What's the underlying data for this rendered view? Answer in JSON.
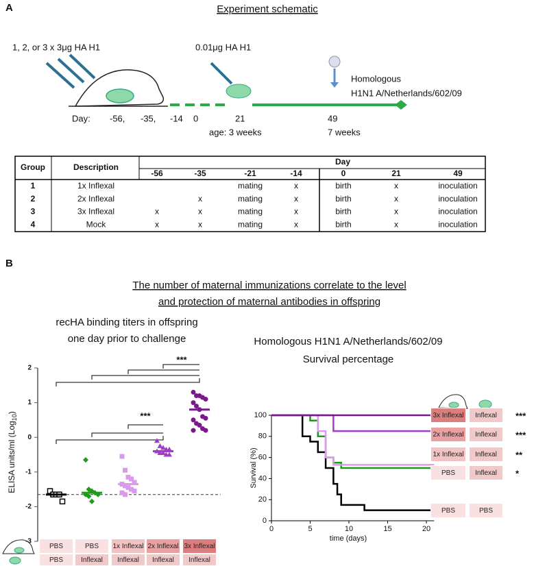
{
  "panel_a": {
    "label": "A",
    "title": "Experiment schematic",
    "dose_text": "1, 2, or 3 x 3μg HA H1",
    "boost_text": "0.01μg HA H1",
    "challenge": [
      "Homologous",
      "H1N1 A/Netherlands/602/09"
    ],
    "day_label": "Day:",
    "days": [
      "-56,",
      "-35,",
      "-14",
      "0",
      "21",
      "49"
    ],
    "ages": [
      "age: 3 weeks",
      "7 weeks"
    ],
    "table": {
      "headers": [
        "Group",
        "Description"
      ],
      "day_header": "Day",
      "day_columns": [
        "-56",
        "-35",
        "-21",
        "-14",
        "0",
        "21",
        "49"
      ],
      "rows": [
        [
          "1",
          "1x Inflexal",
          null,
          null,
          "mating",
          "x",
          "birth",
          "x",
          "inoculation"
        ],
        [
          "2",
          "2x Inflexal",
          null,
          "x",
          "mating",
          "x",
          "birth",
          "x",
          "inoculation"
        ],
        [
          "3",
          "3x Inflexal",
          "x",
          "x",
          "mating",
          "x",
          "birth",
          "x",
          "inoculation"
        ],
        [
          "4",
          "Mock",
          "x",
          "x",
          "mating",
          "x",
          "birth",
          "x",
          "inoculation"
        ]
      ]
    }
  },
  "panel_b": {
    "label": "B",
    "title": [
      "The number of maternal immunizations correlate to the level",
      "and protection of maternal antibodies in offspring"
    ],
    "titers": {
      "type": "dot",
      "title": [
        "recHA binding titers in offspring",
        "one day prior to  challenge"
      ],
      "y_label": [
        "ELISA units/ml (Log",
        "10",
        ")"
      ],
      "ylim": [
        -3,
        2
      ],
      "yticks": [
        -3,
        -2,
        -1,
        0,
        1,
        2
      ],
      "detection_limit": -1.65,
      "significance": [
        "***",
        "***"
      ],
      "groups": [
        {
          "maternal": "PBS",
          "offspring": "PBS",
          "color": "#000000",
          "shape": "open-square",
          "box_color": "#f9e1e1",
          "mean": -1.65,
          "points": [
            -1.55,
            -1.65,
            -1.65,
            -1.65,
            -1.85
          ]
        },
        {
          "maternal": "PBS",
          "offspring": "Inflexal",
          "color": "#1f9a1f",
          "shape": "diamond",
          "box_color": "#f9e1e1",
          "mean": -1.6,
          "points": [
            -0.65,
            -1.5,
            -1.55,
            -1.6,
            -1.65,
            -1.65,
            -1.7,
            -1.85
          ]
        },
        {
          "maternal": "1x Inflexal",
          "offspring": "Inflexal",
          "color": "#dd99ee",
          "shape": "square",
          "box_color": "#f1c3c3",
          "mean": -1.35,
          "points": [
            -0.55,
            -0.95,
            -1.15,
            -1.2,
            -1.3,
            -1.35,
            -1.4,
            -1.45,
            -1.5,
            -1.55,
            -1.6,
            -1.65
          ]
        },
        {
          "maternal": "2x Inflexal",
          "offspring": "Inflexal",
          "color": "#a23bc8",
          "shape": "triangle",
          "box_color": "#e8a0a0",
          "mean": -0.4,
          "points": [
            -0.1,
            -0.25,
            -0.3,
            -0.35,
            -0.35,
            -0.4,
            -0.45,
            -0.45,
            -0.5,
            -0.5
          ]
        },
        {
          "maternal": "3x Inflexal",
          "offspring": "Inflexal",
          "color": "#7a1a8a",
          "shape": "circle",
          "box_color": "#dc7e7e",
          "mean": 0.8,
          "points": [
            1.3,
            1.2,
            1.2,
            1.15,
            1.1,
            1.0,
            0.9,
            0.8,
            0.6,
            0.55,
            0.5,
            0.4,
            0.35,
            0.25,
            0.2,
            0.2
          ]
        }
      ]
    },
    "survival": {
      "type": "step",
      "title": [
        "Homologous H1N1 A/Netherlands/602/09",
        "Survival percentage"
      ],
      "y_label": "Survival (%)",
      "x_label": "time (days)",
      "xlim": [
        0,
        21
      ],
      "xticks": [
        0,
        5,
        10,
        15,
        20
      ],
      "ylim": [
        0,
        100
      ],
      "yticks": [
        0,
        20,
        40,
        60,
        80,
        100
      ],
      "series": [
        {
          "maternal": "3x Inflexal",
          "offspring": "Inflexal",
          "significance": "***",
          "color": "#7a1a8a",
          "box_color": "#dc7e7e",
          "x": [
            0,
            21
          ],
          "y": [
            100,
            100
          ]
        },
        {
          "maternal": "2x Inflexal",
          "offspring": "Inflexal",
          "significance": "***",
          "color": "#a23bc8",
          "box_color": "#e8a0a0",
          "x": [
            0,
            8,
            21
          ],
          "y": [
            100,
            85,
            85
          ]
        },
        {
          "maternal": "1x Inflexal",
          "offspring": "Inflexal",
          "significance": "**",
          "color": "#dd99ee",
          "box_color": "#f1c3c3",
          "x": [
            0,
            6,
            7,
            8,
            21
          ],
          "y": [
            100,
            85,
            60,
            53,
            53
          ]
        },
        {
          "maternal": "PBS",
          "offspring": "Inflexal",
          "significance": "*",
          "color": "#1f9a1f",
          "box_color": "#f9e1e1",
          "x": [
            0,
            5,
            6,
            7,
            8,
            9,
            21
          ],
          "y": [
            100,
            95,
            80,
            60,
            55,
            50,
            50
          ]
        },
        {
          "maternal": "PBS",
          "offspring": "PBS",
          "significance": null,
          "color": "#000000",
          "box_color": "#f9e1e1",
          "x": [
            0,
            4,
            5,
            6,
            7,
            8,
            8.5,
            9,
            12,
            21
          ],
          "y": [
            100,
            80,
            75,
            65,
            50,
            35,
            25,
            15,
            10,
            10
          ]
        }
      ]
    }
  }
}
